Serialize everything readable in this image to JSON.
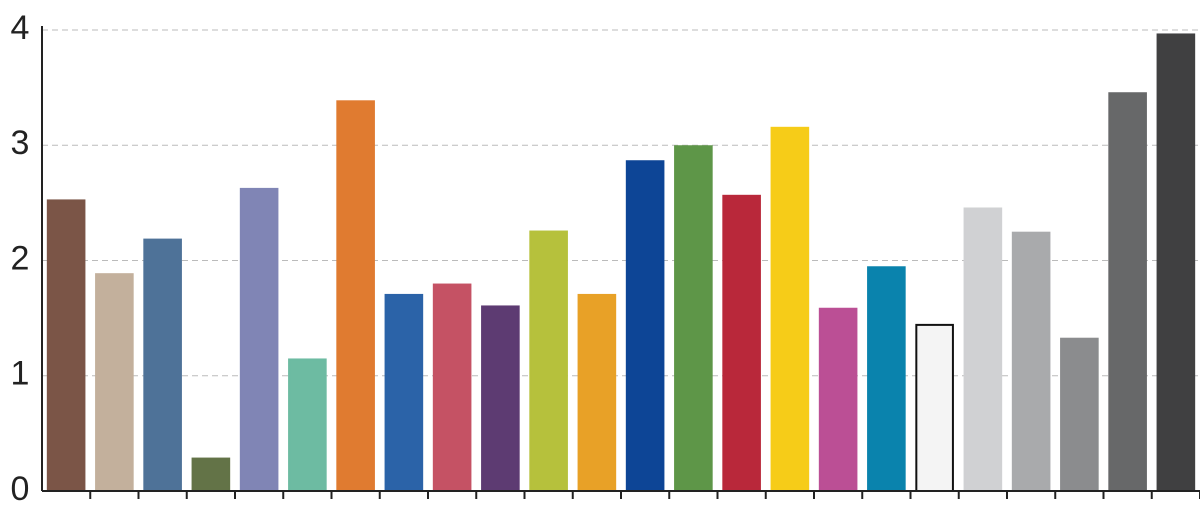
{
  "chart_data": {
    "type": "bar",
    "categories": [
      null,
      null,
      null,
      null,
      null,
      null,
      null,
      null,
      null,
      null,
      null,
      null,
      null,
      null,
      null,
      null,
      null,
      null,
      null,
      null,
      null,
      null,
      null,
      null
    ],
    "values": [
      2.53,
      1.89,
      2.19,
      0.29,
      2.63,
      1.15,
      3.39,
      1.71,
      1.8,
      1.61,
      2.26,
      1.71,
      2.87,
      3.0,
      2.57,
      3.16,
      1.59,
      1.95,
      1.45,
      2.46,
      2.25,
      1.33,
      3.46,
      3.97
    ],
    "colors": [
      "#7b5547",
      "#c3b09c",
      "#4e7298",
      "#637347",
      "#8085b5",
      "#6dbba2",
      "#e07b30",
      "#2b63a8",
      "#c55264",
      "#5d3b72",
      "#b6c13c",
      "#e8a127",
      "#0d4596",
      "#5e9648",
      "#b9283a",
      "#f6cc18",
      "#bb4f95",
      "#0a83ad",
      "#f4f4f4",
      "#d0d1d3",
      "#a9aaac",
      "#8b8c8e",
      "#676869",
      "#404041"
    ],
    "edgecolors": [
      "#7b5547",
      "#c3b09c",
      "#4e7298",
      "#637347",
      "#8085b5",
      "#6dbba2",
      "#e07b30",
      "#2b63a8",
      "#c55264",
      "#5d3b72",
      "#b6c13c",
      "#e8a127",
      "#0d4596",
      "#5e9648",
      "#b9283a",
      "#f6cc18",
      "#bb4f95",
      "#0a83ad",
      "#111111",
      "#d0d1d3",
      "#a9aaac",
      "#8b8c8e",
      "#676869",
      "#404041"
    ],
    "ylim": [
      0,
      4
    ],
    "yticks": [
      0,
      1,
      2,
      3,
      4
    ],
    "grid": true
  }
}
